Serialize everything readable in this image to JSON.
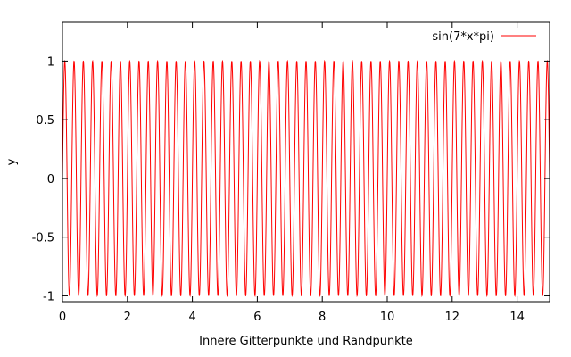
{
  "chart_data": {
    "type": "line",
    "xlabel": "Innere Gitterpunkte und Randpunkte",
    "ylabel": "y",
    "xlim": [
      0,
      15
    ],
    "ylim": [
      -1.05,
      1.33
    ],
    "x_ticks": [
      0,
      2,
      4,
      6,
      8,
      10,
      12,
      14
    ],
    "y_ticks": [
      -1,
      -0.5,
      0,
      0.5,
      1
    ],
    "x_tick_labels": [
      "0",
      "2",
      "4",
      "6",
      "8",
      "10",
      "12",
      "14"
    ],
    "y_tick_labels": [
      "-1",
      "-0.5",
      "0",
      "0.5",
      "1"
    ],
    "grid": false,
    "legend_position": "top-right",
    "series": [
      {
        "name": "sin(7*x*pi)",
        "color": "#ff0000",
        "function": "sin(7*x*pi)",
        "x_range": [
          0,
          15
        ]
      }
    ]
  }
}
